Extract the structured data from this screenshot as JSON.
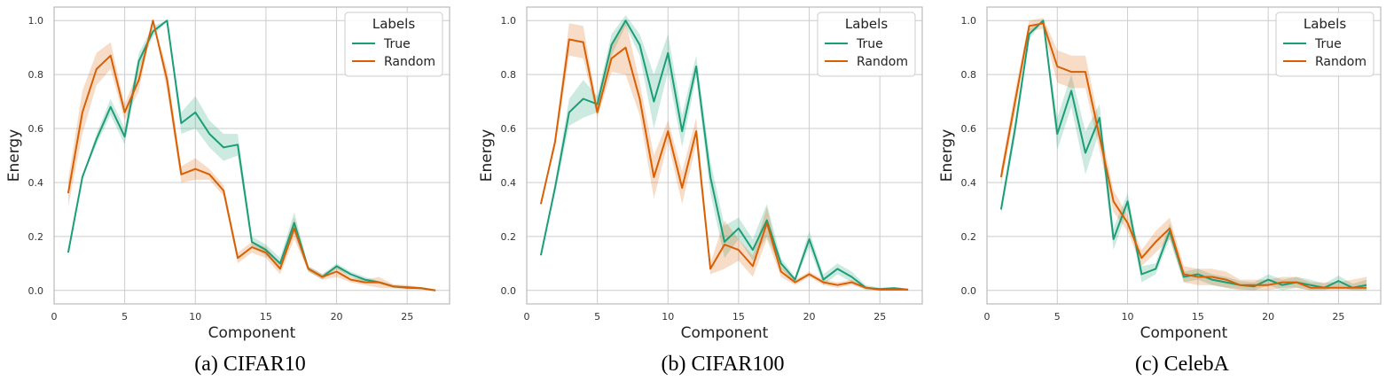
{
  "colors": {
    "true": "#1b9e77",
    "random": "#d95f02",
    "grid": "#cccccc",
    "frame": "#bbbbbb"
  },
  "chart_data": [
    {
      "type": "line",
      "caption": "(a) CIFAR10",
      "xlabel": "Component",
      "ylabel": "Energy",
      "xlim": [
        0,
        28
      ],
      "ylim": [
        -0.05,
        1.05
      ],
      "xticks": [
        0,
        5,
        10,
        15,
        20,
        25
      ],
      "yticks": [
        0.0,
        0.2,
        0.4,
        0.6,
        0.8,
        1.0
      ],
      "xtick_labels": [
        "0",
        "5",
        "10",
        "15",
        "20",
        "25"
      ],
      "ytick_labels": [
        "0.0",
        "0.2",
        "0.4",
        "0.6",
        "0.8",
        "1.0"
      ],
      "grid": true,
      "legend": {
        "title": "Labels",
        "position": "top-right",
        "entries": [
          "True",
          "Random"
        ]
      },
      "x": [
        1,
        2,
        3,
        4,
        5,
        6,
        7,
        8,
        9,
        10,
        11,
        12,
        13,
        14,
        15,
        16,
        17,
        18,
        19,
        20,
        21,
        22,
        23,
        24,
        25,
        26,
        27
      ],
      "series": [
        {
          "name": "True",
          "color_key": "true",
          "values": [
            0.14,
            0.42,
            0.56,
            0.68,
            0.57,
            0.85,
            0.96,
            1.0,
            0.62,
            0.66,
            0.58,
            0.53,
            0.54,
            0.18,
            0.15,
            0.1,
            0.25,
            0.08,
            0.05,
            0.09,
            0.06,
            0.04,
            0.03,
            0.015,
            0.01,
            0.008,
            0.0
          ],
          "band": [
            0.0,
            0.0,
            0.02,
            0.03,
            0.03,
            0.03,
            0.02,
            0.0,
            0.04,
            0.06,
            0.05,
            0.05,
            0.04,
            0.02,
            0.02,
            0.02,
            0.04,
            0.01,
            0.01,
            0.01,
            0.01,
            0.01,
            0.005,
            0.005,
            0.004,
            0.003,
            0.0
          ]
        },
        {
          "name": "Random",
          "color_key": "random",
          "values": [
            0.36,
            0.66,
            0.82,
            0.87,
            0.66,
            0.78,
            1.0,
            0.78,
            0.43,
            0.45,
            0.43,
            0.37,
            0.12,
            0.16,
            0.14,
            0.08,
            0.23,
            0.08,
            0.05,
            0.07,
            0.04,
            0.03,
            0.03,
            0.015,
            0.012,
            0.008,
            0.0
          ],
          "band": [
            0.05,
            0.08,
            0.06,
            0.05,
            0.03,
            0.04,
            0.0,
            0.04,
            0.03,
            0.04,
            0.02,
            0.02,
            0.02,
            0.02,
            0.02,
            0.02,
            0.04,
            0.01,
            0.01,
            0.02,
            0.01,
            0.01,
            0.02,
            0.008,
            0.008,
            0.005,
            0.0
          ]
        }
      ]
    },
    {
      "type": "line",
      "caption": "(b) CIFAR100",
      "xlabel": "Component",
      "ylabel": "Energy",
      "xlim": [
        0,
        28
      ],
      "ylim": [
        -0.05,
        1.05
      ],
      "xticks": [
        0,
        5,
        10,
        15,
        20,
        25
      ],
      "yticks": [
        0.0,
        0.2,
        0.4,
        0.6,
        0.8,
        1.0
      ],
      "xtick_labels": [
        "0",
        "5",
        "10",
        "15",
        "20",
        "25"
      ],
      "ytick_labels": [
        "0.0",
        "0.2",
        "0.4",
        "0.6",
        "0.8",
        "1.0"
      ],
      "grid": true,
      "legend": {
        "title": "Labels",
        "position": "top-right",
        "entries": [
          "True",
          "Random"
        ]
      },
      "x": [
        1,
        2,
        3,
        4,
        5,
        6,
        7,
        8,
        9,
        10,
        11,
        12,
        13,
        14,
        15,
        16,
        17,
        18,
        19,
        20,
        21,
        22,
        23,
        24,
        25,
        26,
        27
      ],
      "series": [
        {
          "name": "True",
          "color_key": "true",
          "values": [
            0.13,
            0.38,
            0.66,
            0.71,
            0.69,
            0.91,
            1.0,
            0.91,
            0.7,
            0.88,
            0.59,
            0.83,
            0.42,
            0.18,
            0.23,
            0.15,
            0.26,
            0.1,
            0.04,
            0.19,
            0.04,
            0.08,
            0.05,
            0.01,
            0.005,
            0.008,
            0.003
          ],
          "band": [
            0.0,
            0.02,
            0.05,
            0.07,
            0.03,
            0.04,
            0.02,
            0.04,
            0.1,
            0.07,
            0.06,
            0.04,
            0.06,
            0.06,
            0.04,
            0.04,
            0.06,
            0.02,
            0.01,
            0.03,
            0.02,
            0.02,
            0.02,
            0.01,
            0.005,
            0.005,
            0.003
          ]
        },
        {
          "name": "Random",
          "color_key": "random",
          "values": [
            0.32,
            0.55,
            0.93,
            0.92,
            0.66,
            0.86,
            0.9,
            0.71,
            0.42,
            0.59,
            0.38,
            0.59,
            0.08,
            0.17,
            0.15,
            0.09,
            0.25,
            0.07,
            0.03,
            0.06,
            0.03,
            0.02,
            0.03,
            0.01,
            0.003,
            0.003,
            0.003
          ],
          "band": [
            0.0,
            0.02,
            0.06,
            0.06,
            0.02,
            0.05,
            0.1,
            0.06,
            0.08,
            0.04,
            0.06,
            0.05,
            0.02,
            0.09,
            0.04,
            0.04,
            0.06,
            0.02,
            0.01,
            0.01,
            0.01,
            0.01,
            0.01,
            0.005,
            0.003,
            0.003,
            0.003
          ]
        }
      ]
    },
    {
      "type": "line",
      "caption": "(c) CelebA",
      "xlabel": "Component",
      "ylabel": "Energy",
      "xlim": [
        0,
        28
      ],
      "ylim": [
        -0.05,
        1.05
      ],
      "xticks": [
        0,
        5,
        10,
        15,
        20,
        25
      ],
      "yticks": [
        0.0,
        0.2,
        0.4,
        0.6,
        0.8,
        1.0
      ],
      "xtick_labels": [
        "0",
        "5",
        "10",
        "15",
        "20",
        "25"
      ],
      "ytick_labels": [
        "0.0",
        "0.2",
        "0.4",
        "0.6",
        "0.8",
        "1.0"
      ],
      "grid": true,
      "legend": {
        "title": "Labels",
        "position": "top-right",
        "entries": [
          "True",
          "Random"
        ]
      },
      "x": [
        1,
        2,
        3,
        4,
        5,
        6,
        7,
        8,
        9,
        10,
        11,
        12,
        13,
        14,
        15,
        16,
        17,
        18,
        19,
        20,
        21,
        22,
        23,
        24,
        25,
        26,
        27
      ],
      "series": [
        {
          "name": "True",
          "color_key": "true",
          "values": [
            0.3,
            0.6,
            0.95,
            1.0,
            0.58,
            0.74,
            0.51,
            0.64,
            0.19,
            0.33,
            0.06,
            0.08,
            0.22,
            0.05,
            0.06,
            0.04,
            0.03,
            0.02,
            0.015,
            0.04,
            0.02,
            0.03,
            0.02,
            0.01,
            0.035,
            0.01,
            0.02
          ],
          "band": [
            0.02,
            0.03,
            0.02,
            0.0,
            0.06,
            0.06,
            0.08,
            0.05,
            0.04,
            0.03,
            0.03,
            0.02,
            0.03,
            0.02,
            0.02,
            0.02,
            0.02,
            0.015,
            0.015,
            0.02,
            0.02,
            0.02,
            0.02,
            0.015,
            0.02,
            0.015,
            0.02
          ]
        },
        {
          "name": "Random",
          "color_key": "random",
          "values": [
            0.42,
            0.7,
            0.98,
            0.99,
            0.83,
            0.81,
            0.81,
            0.57,
            0.33,
            0.25,
            0.12,
            0.18,
            0.23,
            0.06,
            0.05,
            0.05,
            0.04,
            0.02,
            0.02,
            0.02,
            0.03,
            0.03,
            0.01,
            0.01,
            0.01,
            0.01,
            0.01
          ],
          "band": [
            0.03,
            0.04,
            0.02,
            0.02,
            0.06,
            0.06,
            0.06,
            0.05,
            0.04,
            0.03,
            0.03,
            0.04,
            0.04,
            0.03,
            0.03,
            0.03,
            0.03,
            0.02,
            0.02,
            0.02,
            0.02,
            0.02,
            0.02,
            0.02,
            0.02,
            0.03,
            0.04
          ]
        }
      ]
    }
  ]
}
